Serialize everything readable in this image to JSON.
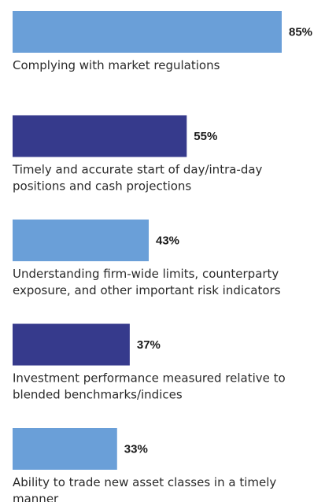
{
  "chart_data": {
    "type": "bar",
    "orientation": "horizontal",
    "categories": [
      "Complying with market regulations",
      "Timely and accurate start of day/intra-day positions and cash projections",
      "Understanding firm-wide limits, counterparty exposure, and other important risk indicators",
      "Investment performance measured relative to blended benchmarks/indices",
      "Ability to trade new asset classes in a timely manner"
    ],
    "category_lines": [
      [
        "Complying with market regulations"
      ],
      [
        "Timely and accurate start of day/intra-day",
        "positions and cash projections"
      ],
      [
        "Understanding firm-wide limits, counterparty",
        "exposure, and other important risk indicators"
      ],
      [
        "Investment performance measured relative to",
        "blended benchmarks/indices"
      ],
      [
        "Ability to trade new asset classes in a timely",
        "manner"
      ]
    ],
    "values": [
      85,
      55,
      43,
      37,
      33
    ],
    "value_labels": [
      "85%",
      "55%",
      "43%",
      "37%",
      "33%"
    ],
    "bar_colors": [
      "#6a9fd8",
      "#363a8c",
      "#6a9fd8",
      "#363a8c",
      "#6a9fd8"
    ],
    "xlim": [
      0,
      100
    ],
    "grid": false,
    "legend": "none"
  }
}
